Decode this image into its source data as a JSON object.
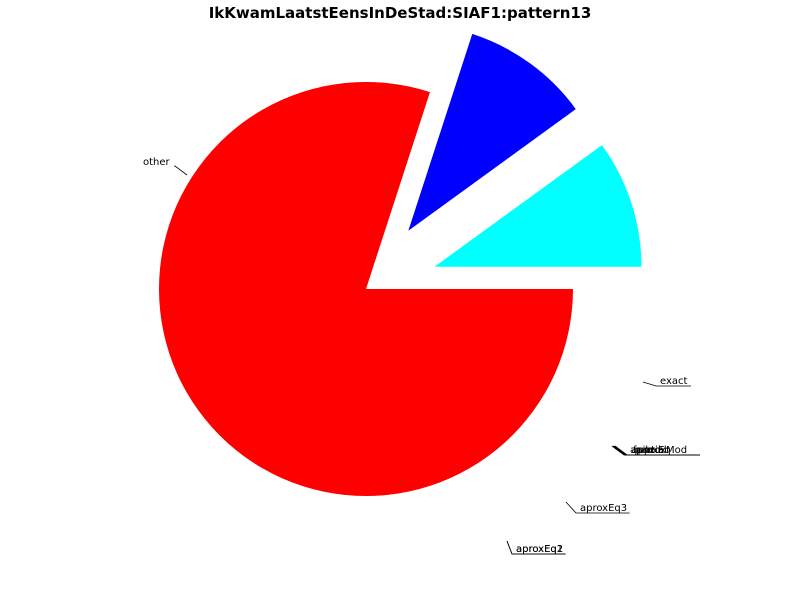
{
  "chart_data": {
    "type": "pie",
    "title": "IkKwamLaatstEensInDeStad:SIAF1:pattern13",
    "slices": [
      {
        "label": "other",
        "value": 0.8,
        "color": "#ff0000",
        "exploded": false
      },
      {
        "label": "exact",
        "value": 0.1,
        "color": "#0000ff",
        "exploded": true
      },
      {
        "label": "aproxEq3",
        "value": 0.1,
        "color": "#00ffff",
        "exploded": true
      },
      {
        "label": "aproxEq2",
        "value": 0.0,
        "color": "#00ffff",
        "exploded": true
      },
      {
        "label": "aproxEq1",
        "value": 0.0,
        "color": "#00ffff",
        "exploded": true
      }
    ],
    "overlapping_labels_near_zero_slices": [
      "aproxEq",
      "approxMod",
      "failed",
      "partial"
    ]
  }
}
